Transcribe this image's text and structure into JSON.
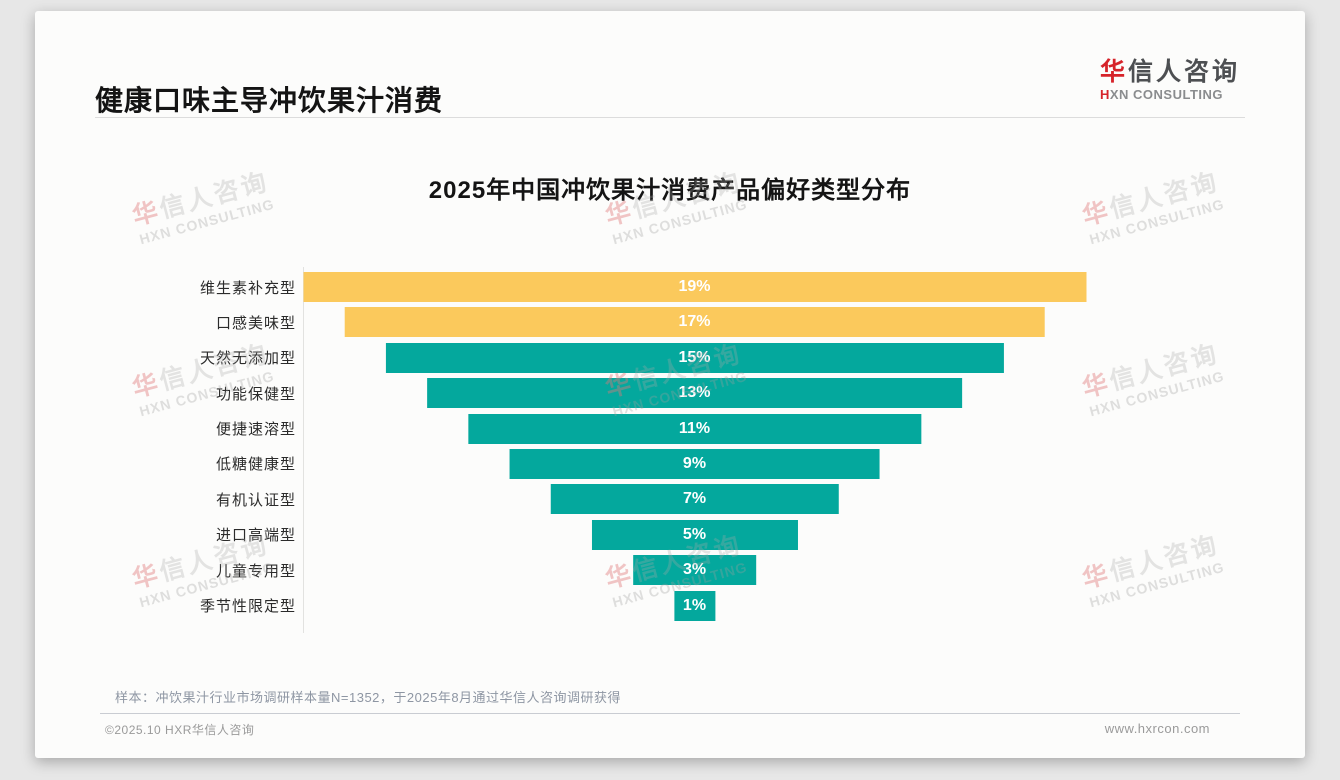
{
  "header": {
    "title": "健康口味主导冲饮果汁消费",
    "logo_cn_first": "华",
    "logo_cn_rest": "信人咨询",
    "logo_en_first": "H",
    "logo_en_rest": "XN CONSULTING"
  },
  "chart_data": {
    "type": "bar",
    "subtype": "centered-funnel",
    "orientation": "horizontal",
    "title": "2025年中国冲饮果汁消费产品偏好类型分布",
    "categories": [
      "维生素补充型",
      "口感美味型",
      "天然无添加型",
      "功能保健型",
      "便捷速溶型",
      "低糖健康型",
      "有机认证型",
      "进口高端型",
      "儿童专用型",
      "季节性限定型"
    ],
    "values": [
      19,
      17,
      15,
      13,
      11,
      9,
      7,
      5,
      3,
      1
    ],
    "value_labels": [
      "19%",
      "17%",
      "15%",
      "13%",
      "11%",
      "9%",
      "7%",
      "5%",
      "3%",
      "1%"
    ],
    "unit": "%",
    "max_value": 19,
    "bar_colors": [
      "#FBC95C",
      "#FBC95C",
      "#04A89D",
      "#04A89D",
      "#04A89D",
      "#04A89D",
      "#04A89D",
      "#04A89D",
      "#04A89D",
      "#04A89D"
    ],
    "value_label_color": "#FFFFFF",
    "legend": "none",
    "grid": "off"
  },
  "footnote": {
    "sample_note": "样本：冲饮果汁行业市场调研样本量N=1352，于2025年8月通过华信人咨询调研获得"
  },
  "footer": {
    "copyright": "©2025.10 HXR华信人咨询",
    "website": "www.hxrcon.com"
  },
  "watermark": {
    "cn_first": "华",
    "cn_rest": "信人咨询",
    "en": "HXN CONSULTING"
  },
  "colors": {
    "accent_red": "#D6232A",
    "bar_yellow": "#FBC95C",
    "bar_teal": "#04A89D",
    "page_bg": "#E7E7E7",
    "card_bg": "#FCFCFB"
  }
}
